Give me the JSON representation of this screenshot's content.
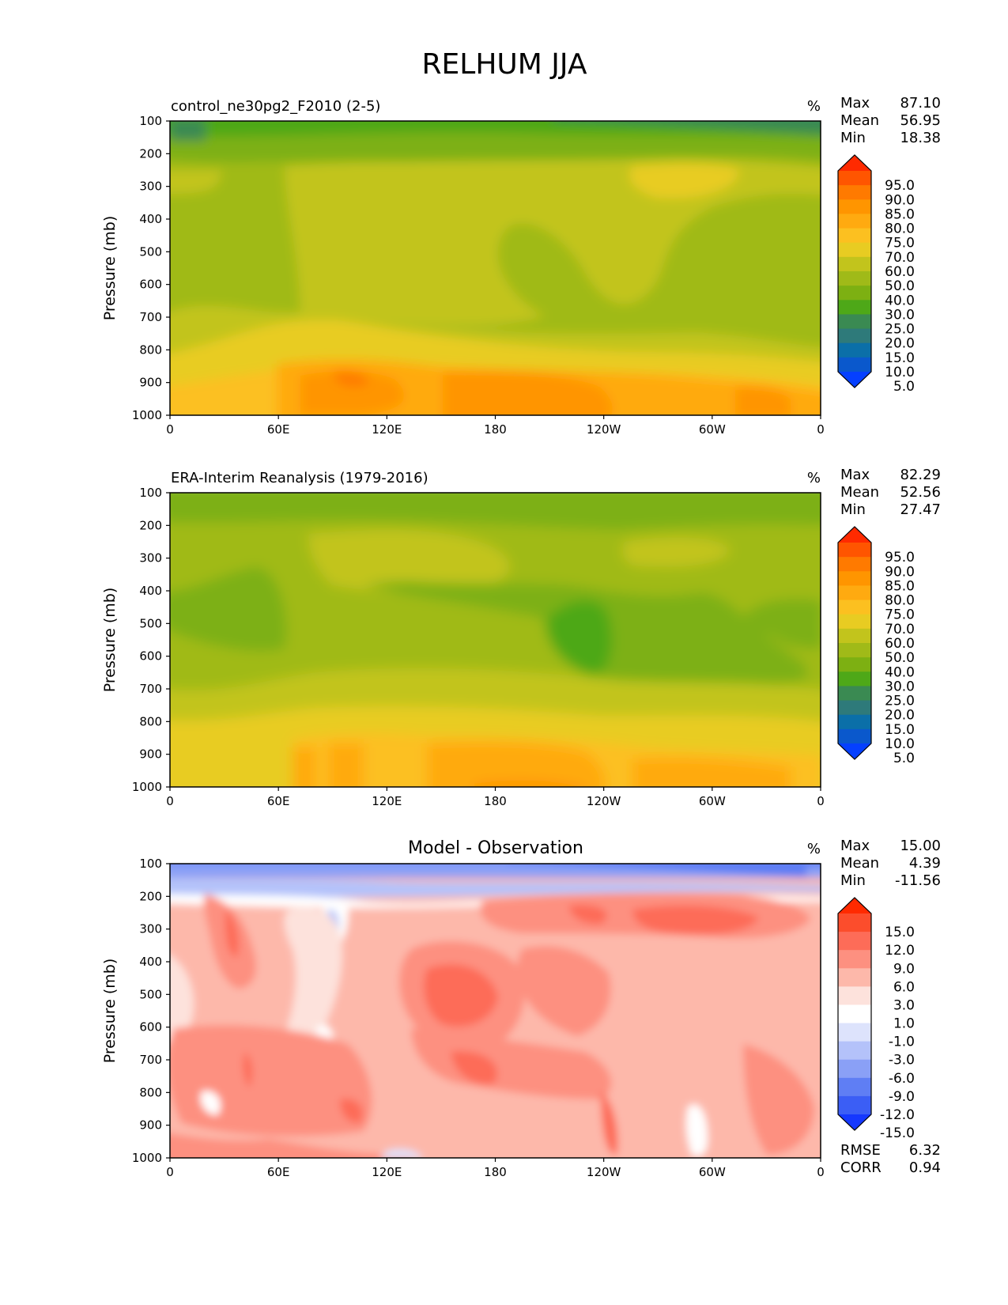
{
  "page_title": "RELHUM JJA",
  "chart_data": [
    {
      "type": "heatmap",
      "title": "control_ne30pg2_F2010 (2-5)",
      "units": "%",
      "ylabel": "Pressure (mb)",
      "xlabel": "",
      "x_ticks": [
        "0",
        "60E",
        "120E",
        "180",
        "120W",
        "60W",
        "0"
      ],
      "y_ticks": [
        "100",
        "200",
        "300",
        "400",
        "500",
        "600",
        "700",
        "800",
        "900",
        "1000"
      ],
      "ylim": [
        1000,
        100
      ],
      "stats": [
        {
          "label": "Max",
          "value": "87.10"
        },
        {
          "label": "Mean",
          "value": "56.95"
        },
        {
          "label": "Min",
          "value": "18.38"
        }
      ],
      "colorbar": {
        "labels": [
          "95.0",
          "90.0",
          "85.0",
          "80.0",
          "75.0",
          "70.0",
          "60.0",
          "50.0",
          "40.0",
          "30.0",
          "25.0",
          "20.0",
          "15.0",
          "10.0",
          "5.0"
        ],
        "colors": [
          "#ff2a00",
          "#ff5500",
          "#ff7a00",
          "#ff9500",
          "#ffaa10",
          "#fcc020",
          "#e8cc22",
          "#c2c41c",
          "#a0ba18",
          "#7db012",
          "#4ea818",
          "#3a8a52",
          "#2e7a7a",
          "#0b6fa8",
          "#0a58cc",
          "#0540ff"
        ]
      }
    },
    {
      "type": "heatmap",
      "title": "ERA-Interim Reanalysis (1979-2016)",
      "units": "%",
      "ylabel": "Pressure (mb)",
      "xlabel": "",
      "x_ticks": [
        "0",
        "60E",
        "120E",
        "180",
        "120W",
        "60W",
        "0"
      ],
      "y_ticks": [
        "100",
        "200",
        "300",
        "400",
        "500",
        "600",
        "700",
        "800",
        "900",
        "1000"
      ],
      "ylim": [
        1000,
        100
      ],
      "stats": [
        {
          "label": "Max",
          "value": "82.29"
        },
        {
          "label": "Mean",
          "value": "52.56"
        },
        {
          "label": "Min",
          "value": "27.47"
        }
      ],
      "colorbar": {
        "labels": [
          "95.0",
          "90.0",
          "85.0",
          "80.0",
          "75.0",
          "70.0",
          "60.0",
          "50.0",
          "40.0",
          "30.0",
          "25.0",
          "20.0",
          "15.0",
          "10.0",
          "5.0"
        ],
        "colors": [
          "#ff2a00",
          "#ff5500",
          "#ff7a00",
          "#ff9500",
          "#ffaa10",
          "#fcc020",
          "#e8cc22",
          "#c2c41c",
          "#a0ba18",
          "#7db012",
          "#4ea818",
          "#3a8a52",
          "#2e7a7a",
          "#0b6fa8",
          "#0a58cc",
          "#0540ff"
        ]
      }
    },
    {
      "type": "heatmap",
      "title": "Model - Observation",
      "units": "%",
      "ylabel": "Pressure (mb)",
      "xlabel": "",
      "x_ticks": [
        "0",
        "60E",
        "120E",
        "180",
        "120W",
        "60W",
        "0"
      ],
      "y_ticks": [
        "100",
        "200",
        "300",
        "400",
        "500",
        "600",
        "700",
        "800",
        "900",
        "1000"
      ],
      "ylim": [
        1000,
        100
      ],
      "stats": [
        {
          "label": "Max",
          "value": "15.00"
        },
        {
          "label": "Mean",
          "value": "4.39"
        },
        {
          "label": "Min",
          "value": "-11.56"
        }
      ],
      "metrics": [
        {
          "label": "RMSE",
          "value": "6.32"
        },
        {
          "label": "CORR",
          "value": "0.94"
        }
      ],
      "colorbar": {
        "labels": [
          "15.0",
          "12.0",
          "9.0",
          "6.0",
          "3.0",
          "1.0",
          "-1.0",
          "-3.0",
          "-6.0",
          "-9.0",
          "-12.0",
          "-15.0"
        ],
        "colors": [
          "#ff2a00",
          "#fc4d2c",
          "#fd6c58",
          "#fd9080",
          "#fdb8aa",
          "#fde2dc",
          "#ffffff",
          "#dde3fc",
          "#b4c2fa",
          "#8aa0f6",
          "#5f7ef4",
          "#3b5ef5",
          "#1538ff"
        ]
      }
    }
  ]
}
